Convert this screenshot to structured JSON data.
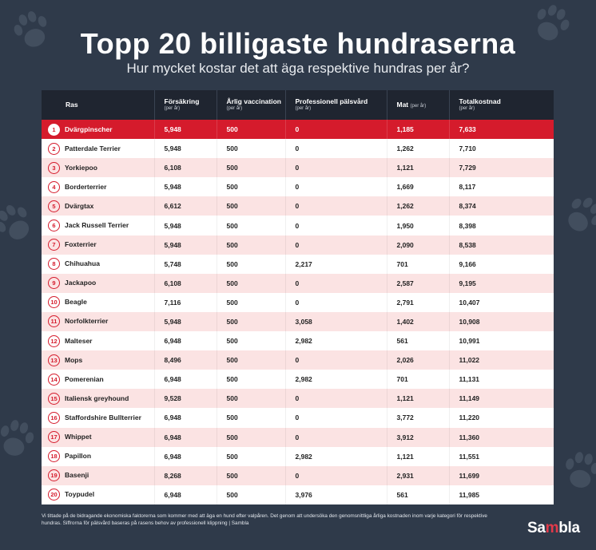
{
  "title": "Topp 20 billigaste hundraserna",
  "subtitle": "Hur mycket kostar det att äga respektive hundras per år?",
  "columns": {
    "breed": "Ras",
    "insurance": "Försäkring",
    "insurance_unit": "(per år)",
    "vaccination": "Årlig vaccination",
    "vaccination_unit": "(per år)",
    "grooming": "Professionell pälsvård",
    "grooming_unit": "(per år)",
    "food": "Mat",
    "food_unit": "(per år)",
    "total": "Totalkostnad",
    "total_unit": "(per år)"
  },
  "rows": [
    {
      "rank": "1",
      "breed": "Dvärgpinscher",
      "insurance": "5,948",
      "vaccination": "500",
      "grooming": "0",
      "food": "1,185",
      "total": "7,633"
    },
    {
      "rank": "2",
      "breed": "Patterdale Terrier",
      "insurance": "5,948",
      "vaccination": "500",
      "grooming": "0",
      "food": "1,262",
      "total": "7,710"
    },
    {
      "rank": "3",
      "breed": "Yorkiepoo",
      "insurance": "6,108",
      "vaccination": "500",
      "grooming": "0",
      "food": "1,121",
      "total": "7,729"
    },
    {
      "rank": "4",
      "breed": "Borderterrier",
      "insurance": "5,948",
      "vaccination": "500",
      "grooming": "0",
      "food": "1,669",
      "total": "8,117"
    },
    {
      "rank": "5",
      "breed": "Dvärgtax",
      "insurance": "6,612",
      "vaccination": "500",
      "grooming": "0",
      "food": "1,262",
      "total": "8,374"
    },
    {
      "rank": "6",
      "breed": "Jack Russell Terrier",
      "insurance": "5,948",
      "vaccination": "500",
      "grooming": "0",
      "food": "1,950",
      "total": "8,398"
    },
    {
      "rank": "7",
      "breed": "Foxterrier",
      "insurance": "5,948",
      "vaccination": "500",
      "grooming": "0",
      "food": "2,090",
      "total": "8,538"
    },
    {
      "rank": "8",
      "breed": "Chihuahua",
      "insurance": "5,748",
      "vaccination": "500",
      "grooming": "2,217",
      "food": "701",
      "total": "9,166"
    },
    {
      "rank": "9",
      "breed": "Jackapoo",
      "insurance": "6,108",
      "vaccination": "500",
      "grooming": "0",
      "food": "2,587",
      "total": "9,195"
    },
    {
      "rank": "10",
      "breed": "Beagle",
      "insurance": "7,116",
      "vaccination": "500",
      "grooming": "0",
      "food": "2,791",
      "total": "10,407"
    },
    {
      "rank": "11",
      "breed": "Norfolkterrier",
      "insurance": "5,948",
      "vaccination": "500",
      "grooming": "3,058",
      "food": "1,402",
      "total": "10,908"
    },
    {
      "rank": "12",
      "breed": "Malteser",
      "insurance": "6,948",
      "vaccination": "500",
      "grooming": "2,982",
      "food": "561",
      "total": "10,991"
    },
    {
      "rank": "13",
      "breed": "Mops",
      "insurance": "8,496",
      "vaccination": "500",
      "grooming": "0",
      "food": "2,026",
      "total": "11,022"
    },
    {
      "rank": "14",
      "breed": "Pomerenian",
      "insurance": "6,948",
      "vaccination": "500",
      "grooming": "2,982",
      "food": "701",
      "total": "11,131"
    },
    {
      "rank": "15",
      "breed": "Italiensk greyhound",
      "insurance": "9,528",
      "vaccination": "500",
      "grooming": "0",
      "food": "1,121",
      "total": "11,149"
    },
    {
      "rank": "16",
      "breed": "Staffordshire Bullterrier",
      "insurance": "6,948",
      "vaccination": "500",
      "grooming": "0",
      "food": "3,772",
      "total": "11,220"
    },
    {
      "rank": "17",
      "breed": "Whippet",
      "insurance": "6,948",
      "vaccination": "500",
      "grooming": "0",
      "food": "3,912",
      "total": "11,360"
    },
    {
      "rank": "18",
      "breed": "Papillon",
      "insurance": "6,948",
      "vaccination": "500",
      "grooming": "2,982",
      "food": "1,121",
      "total": "11,551"
    },
    {
      "rank": "19",
      "breed": "Basenji",
      "insurance": "8,268",
      "vaccination": "500",
      "grooming": "0",
      "food": "2,931",
      "total": "11,699"
    },
    {
      "rank": "20",
      "breed": "Toypudel",
      "insurance": "6,948",
      "vaccination": "500",
      "grooming": "3,976",
      "food": "561",
      "total": "11,985"
    }
  ],
  "footnote": "Vi tittade på de bidragande ekonomiska faktorerna som kommer med att äga en hund efter valpåren. Det genom att undersöka den genomsnittliga årliga kostnaden inom varje kategori för respektive hundras. Siffrorna för pälsvård baseras på rasens behov av professionell klippning | Sambla",
  "logo": {
    "part1": "Sa",
    "part2": "m",
    "part3": "bla"
  },
  "colors": {
    "background": "#2f3a4a",
    "accent": "#d51b2c",
    "header": "#1f2530",
    "row_tint": "#fbe3e3"
  },
  "background_icon": "paw-print-icon"
}
